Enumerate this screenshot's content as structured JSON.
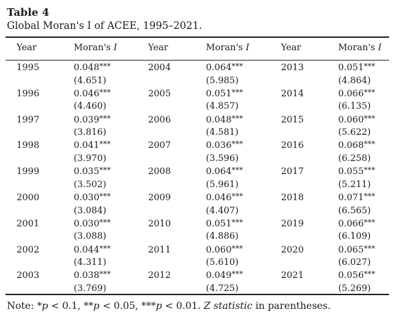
{
  "table": {
    "label": "Table 4",
    "caption": "Global Moran's I of ACEE, 1995–2021.",
    "headers": [
      {
        "year": "Year",
        "moran_prefix": "Moran's ",
        "moran_italic": "I"
      },
      {
        "year": "Year",
        "moran_prefix": "Moran's ",
        "moran_italic": "I"
      },
      {
        "year": "Year",
        "moran_prefix": "Moran's ",
        "moran_italic": "I"
      }
    ],
    "groups": [
      [
        {
          "year": "1995",
          "value": "0.048",
          "stars": "***",
          "z": "(4.651)"
        },
        {
          "year": "1996",
          "value": "0.046",
          "stars": "***",
          "z": "(4.460)"
        },
        {
          "year": "1997",
          "value": "0.039",
          "stars": "***",
          "z": "(3.816)"
        },
        {
          "year": "1998",
          "value": "0.041",
          "stars": "***",
          "z": "(3.970)"
        },
        {
          "year": "1999",
          "value": "0.035",
          "stars": "***",
          "z": "(3.502)"
        },
        {
          "year": "2000",
          "value": "0.030",
          "stars": "***",
          "z": "(3.084)"
        },
        {
          "year": "2001",
          "value": "0.030",
          "stars": "***",
          "z": "(3.088)"
        },
        {
          "year": "2002",
          "value": "0.044",
          "stars": "***",
          "z": "(4.311)"
        },
        {
          "year": "2003",
          "value": "0.038",
          "stars": "***",
          "z": "(3.769)"
        }
      ],
      [
        {
          "year": "2004",
          "value": "0.064",
          "stars": "***",
          "z": "(5.985)"
        },
        {
          "year": "2005",
          "value": "0.051",
          "stars": "***",
          "z": "(4.857)"
        },
        {
          "year": "2006",
          "value": "0.048",
          "stars": "***",
          "z": "(4.581)"
        },
        {
          "year": "2007",
          "value": "0.036",
          "stars": "***",
          "z": "(3.596)"
        },
        {
          "year": "2008",
          "value": "0.064",
          "stars": "***",
          "z": "(5.961)"
        },
        {
          "year": "2009",
          "value": "0.046",
          "stars": "***",
          "z": "(4.407)"
        },
        {
          "year": "2010",
          "value": "0.051",
          "stars": "***",
          "z": "(4.886)"
        },
        {
          "year": "2011",
          "value": "0.060",
          "stars": "***",
          "z": "(5.610)"
        },
        {
          "year": "2012",
          "value": "0.049",
          "stars": "***",
          "z": "(4.725)"
        }
      ],
      [
        {
          "year": "2013",
          "value": "0.051",
          "stars": "***",
          "z": "(4.864)"
        },
        {
          "year": "2014",
          "value": "0.066",
          "stars": "***",
          "z": "(6.135)"
        },
        {
          "year": "2015",
          "value": "0.060",
          "stars": "***",
          "z": "(5.622)"
        },
        {
          "year": "2016",
          "value": "0.068",
          "stars": "***",
          "z": "(6.258)"
        },
        {
          "year": "2017",
          "value": "0.055",
          "stars": "***",
          "z": "(5.211)"
        },
        {
          "year": "2018",
          "value": "0.071",
          "stars": "***",
          "z": "(6.565)"
        },
        {
          "year": "2019",
          "value": "0.066",
          "stars": "***",
          "z": "(6.109)"
        },
        {
          "year": "2020",
          "value": "0.065",
          "stars": "***",
          "z": "(6.027)"
        },
        {
          "year": "2021",
          "value": "0.056",
          "stars": "***",
          "z": "(5.269)"
        }
      ]
    ]
  },
  "note": {
    "prefix": "Note: ",
    "sig1_stars": "*",
    "sig1_var": "p",
    "sig1_rest": " < 0.1, ",
    "sig2_stars": "**",
    "sig2_var": "p",
    "sig2_rest": " < 0.05, ",
    "sig3_stars": "***",
    "sig3_var": "p",
    "sig3_rest": " < 0.01. ",
    "stat_italic": "Z statistic",
    "suffix": " in parentheses."
  }
}
